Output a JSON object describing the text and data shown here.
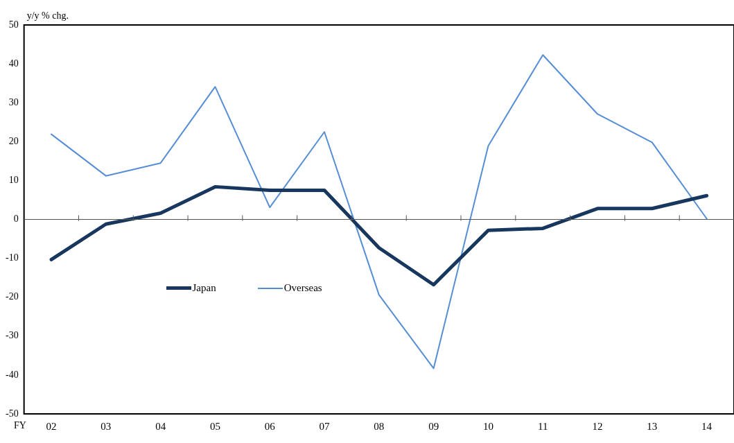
{
  "chart_data": {
    "type": "line",
    "ylabel": "y/y % chg.",
    "xlabel": "FY",
    "categories": [
      "02",
      "03",
      "04",
      "05",
      "06",
      "07",
      "08",
      "09",
      "10",
      "11",
      "12",
      "13",
      "14"
    ],
    "series": [
      {
        "name": "Japan",
        "color": "#17375e",
        "values": [
          -10.3,
          -1.2,
          1.6,
          8.4,
          7.5,
          7.5,
          -7.3,
          -16.8,
          -2.8,
          -2.3,
          2.8,
          2.8,
          6.1
        ]
      },
      {
        "name": "Overseas",
        "color": "#558ed5",
        "values": [
          21.9,
          11.2,
          14.5,
          34.1,
          3.1,
          22.5,
          -19.4,
          -38.3,
          18.9,
          42.3,
          27.1,
          19.8,
          0.2
        ]
      }
    ],
    "ylim": [
      -50,
      50
    ],
    "yticks": [
      -50,
      -40,
      -30,
      -20,
      -10,
      0,
      10,
      20,
      30,
      40,
      50
    ],
    "ref_lines": [
      {
        "axis": "y",
        "value": 0
      }
    ],
    "grid": false,
    "legend": "left",
    "marker": "none",
    "line_style": "solid"
  }
}
